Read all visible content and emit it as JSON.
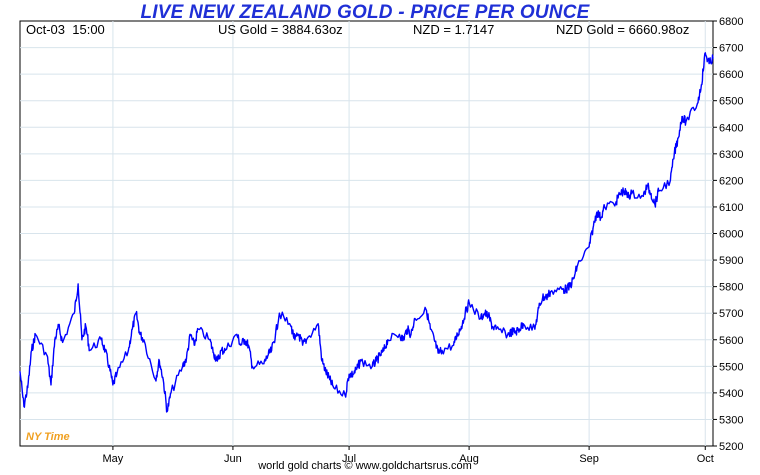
{
  "header": {
    "date_label": "Oct-03",
    "time_label": "15:00",
    "usd_gold": "US Gold = 3884.63oz",
    "nzd_rate": "NZD = 1.7147",
    "nzd_gold": "NZD Gold = 6660.98oz"
  },
  "timezone_label": "NY Time",
  "footer": "world gold charts © www.goldchartsrus.com",
  "colors": {
    "line": "#0000ff",
    "title": "#1f2fd6",
    "grid": "#d8e4ec",
    "timezone": "#f0a020"
  },
  "chart_data": {
    "type": "line",
    "title": "LIVE NEW ZEALAND GOLD - PRICE PER OUNCE",
    "xlabel": "",
    "ylabel": "",
    "ylim": [
      5200,
      6800
    ],
    "y_ticks": [
      5200,
      5300,
      5400,
      5500,
      5600,
      5700,
      5800,
      5900,
      6000,
      6100,
      6200,
      6300,
      6400,
      6500,
      6600,
      6700,
      6800
    ],
    "x_range": [
      "2025-04-07",
      "2025-10-03"
    ],
    "x_ticks": [
      {
        "label": "May",
        "date": "2025-05-01"
      },
      {
        "label": "Jun",
        "date": "2025-06-01"
      },
      {
        "label": "Jul",
        "date": "2025-07-01"
      },
      {
        "label": "Aug",
        "date": "2025-08-01"
      },
      {
        "label": "Sep",
        "date": "2025-09-01"
      },
      {
        "label": "Oct",
        "date": "2025-10-01"
      }
    ],
    "grid": true,
    "series": [
      {
        "values": [
          [
            "2025-04-07",
            5480
          ],
          [
            "2025-04-08",
            5350
          ],
          [
            "2025-04-09",
            5420
          ],
          [
            "2025-04-10",
            5560
          ],
          [
            "2025-04-11",
            5620
          ],
          [
            "2025-04-14",
            5540
          ],
          [
            "2025-04-15",
            5430
          ],
          [
            "2025-04-16",
            5600
          ],
          [
            "2025-04-17",
            5650
          ],
          [
            "2025-04-18",
            5590
          ],
          [
            "2025-04-21",
            5700
          ],
          [
            "2025-04-22",
            5810
          ],
          [
            "2025-04-23",
            5600
          ],
          [
            "2025-04-24",
            5650
          ],
          [
            "2025-04-25",
            5560
          ],
          [
            "2025-04-28",
            5600
          ],
          [
            "2025-04-29",
            5560
          ],
          [
            "2025-04-30",
            5500
          ],
          [
            "2025-05-01",
            5430
          ],
          [
            "2025-05-02",
            5470
          ],
          [
            "2025-05-05",
            5560
          ],
          [
            "2025-05-06",
            5640
          ],
          [
            "2025-05-07",
            5700
          ],
          [
            "2025-05-08",
            5620
          ],
          [
            "2025-05-09",
            5600
          ],
          [
            "2025-05-12",
            5450
          ],
          [
            "2025-05-13",
            5520
          ],
          [
            "2025-05-14",
            5450
          ],
          [
            "2025-05-15",
            5330
          ],
          [
            "2025-05-16",
            5400
          ],
          [
            "2025-05-19",
            5500
          ],
          [
            "2025-05-20",
            5530
          ],
          [
            "2025-05-21",
            5620
          ],
          [
            "2025-05-22",
            5580
          ],
          [
            "2025-05-23",
            5640
          ],
          [
            "2025-05-26",
            5600
          ],
          [
            "2025-05-27",
            5550
          ],
          [
            "2025-05-28",
            5520
          ],
          [
            "2025-05-29",
            5560
          ],
          [
            "2025-05-30",
            5560
          ],
          [
            "2025-06-02",
            5620
          ],
          [
            "2025-06-03",
            5580
          ],
          [
            "2025-06-04",
            5600
          ],
          [
            "2025-06-05",
            5580
          ],
          [
            "2025-06-06",
            5500
          ],
          [
            "2025-06-09",
            5510
          ],
          [
            "2025-06-10",
            5540
          ],
          [
            "2025-06-11",
            5560
          ],
          [
            "2025-06-12",
            5620
          ],
          [
            "2025-06-13",
            5700
          ],
          [
            "2025-06-16",
            5650
          ],
          [
            "2025-06-17",
            5600
          ],
          [
            "2025-06-18",
            5620
          ],
          [
            "2025-06-19",
            5580
          ],
          [
            "2025-06-20",
            5600
          ],
          [
            "2025-06-23",
            5660
          ],
          [
            "2025-06-24",
            5520
          ],
          [
            "2025-06-25",
            5480
          ],
          [
            "2025-06-26",
            5450
          ],
          [
            "2025-06-27",
            5420
          ],
          [
            "2025-06-30",
            5390
          ],
          [
            "2025-07-01",
            5470
          ],
          [
            "2025-07-02",
            5470
          ],
          [
            "2025-07-03",
            5490
          ],
          [
            "2025-07-04",
            5520
          ],
          [
            "2025-07-07",
            5500
          ],
          [
            "2025-07-08",
            5520
          ],
          [
            "2025-07-09",
            5540
          ],
          [
            "2025-07-10",
            5560
          ],
          [
            "2025-07-11",
            5600
          ],
          [
            "2025-07-14",
            5620
          ],
          [
            "2025-07-15",
            5600
          ],
          [
            "2025-07-16",
            5640
          ],
          [
            "2025-07-17",
            5620
          ],
          [
            "2025-07-18",
            5680
          ],
          [
            "2025-07-21",
            5710
          ],
          [
            "2025-07-22",
            5640
          ],
          [
            "2025-07-23",
            5600
          ],
          [
            "2025-07-24",
            5550
          ],
          [
            "2025-07-25",
            5560
          ],
          [
            "2025-07-28",
            5580
          ],
          [
            "2025-07-29",
            5620
          ],
          [
            "2025-07-30",
            5650
          ],
          [
            "2025-07-31",
            5700
          ],
          [
            "2025-08-01",
            5740
          ],
          [
            "2025-08-04",
            5680
          ],
          [
            "2025-08-05",
            5700
          ],
          [
            "2025-08-06",
            5690
          ],
          [
            "2025-08-07",
            5650
          ],
          [
            "2025-08-08",
            5640
          ],
          [
            "2025-08-11",
            5620
          ],
          [
            "2025-08-12",
            5630
          ],
          [
            "2025-08-13",
            5630
          ],
          [
            "2025-08-14",
            5640
          ],
          [
            "2025-08-15",
            5660
          ],
          [
            "2025-08-18",
            5640
          ],
          [
            "2025-08-19",
            5720
          ],
          [
            "2025-08-20",
            5760
          ],
          [
            "2025-08-21",
            5760
          ],
          [
            "2025-08-22",
            5780
          ],
          [
            "2025-08-25",
            5790
          ],
          [
            "2025-08-26",
            5790
          ],
          [
            "2025-08-27",
            5800
          ],
          [
            "2025-08-28",
            5830
          ],
          [
            "2025-08-29",
            5880
          ],
          [
            "2025-09-01",
            5950
          ],
          [
            "2025-09-02",
            6020
          ],
          [
            "2025-09-03",
            6080
          ],
          [
            "2025-09-04",
            6060
          ],
          [
            "2025-09-05",
            6100
          ],
          [
            "2025-09-08",
            6120
          ],
          [
            "2025-09-09",
            6150
          ],
          [
            "2025-09-10",
            6160
          ],
          [
            "2025-09-11",
            6140
          ],
          [
            "2025-09-12",
            6150
          ],
          [
            "2025-09-15",
            6140
          ],
          [
            "2025-09-16",
            6180
          ],
          [
            "2025-09-17",
            6150
          ],
          [
            "2025-09-18",
            6110
          ],
          [
            "2025-09-19",
            6160
          ],
          [
            "2025-09-22",
            6200
          ],
          [
            "2025-09-23",
            6300
          ],
          [
            "2025-09-24",
            6360
          ],
          [
            "2025-09-25",
            6440
          ],
          [
            "2025-09-26",
            6420
          ],
          [
            "2025-09-29",
            6490
          ],
          [
            "2025-09-30",
            6560
          ],
          [
            "2025-10-01",
            6680
          ],
          [
            "2025-10-02",
            6640
          ],
          [
            "2025-10-03",
            6660
          ]
        ]
      }
    ]
  }
}
